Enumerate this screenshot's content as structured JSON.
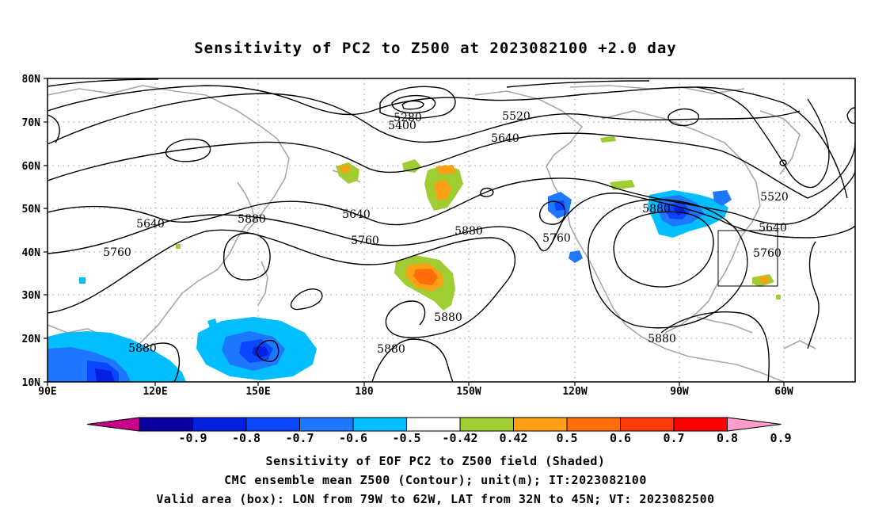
{
  "title": "Sensitivity of PC2 to Z500 at 2023082100 +2.0 day",
  "map": {
    "lat_ticks": [
      "80N",
      "70N",
      "60N",
      "50N",
      "40N",
      "30N",
      "20N",
      "10N"
    ],
    "lon_ticks": [
      "90E",
      "120E",
      "150E",
      "180",
      "150W",
      "120W",
      "90W",
      "60W"
    ],
    "contour_labels": [
      "5280",
      "5400",
      "5520",
      "5640",
      "5640",
      "5640",
      "5760",
      "5760",
      "5760",
      "5880",
      "5880",
      "5880",
      "5880",
      "5880",
      "5880",
      "5520",
      "5640",
      "5760"
    ],
    "valid_box": {
      "lon_from": "79W",
      "lon_to": "62W",
      "lat_from": "32N",
      "lat_to": "45N"
    }
  },
  "colorbar": {
    "labels": [
      "-0.9",
      "-0.8",
      "-0.7",
      "-0.6",
      "-0.5",
      "-0.42",
      "0.42",
      "0.5",
      "0.6",
      "0.7",
      "0.8",
      "0.9"
    ],
    "colors": [
      "#c8008c",
      "#0a00a0",
      "#0022e0",
      "#0a46ff",
      "#1e78ff",
      "#00beff",
      "#ffffff",
      "#a0cd32",
      "#ffa014",
      "#ff6e0a",
      "#ff3c0a",
      "#ff0000",
      "#ff9cc8"
    ]
  },
  "captions": {
    "line1": "Sensitivity of EOF PC2 to Z500 field (Shaded)",
    "line2": "CMC ensemble mean Z500 (Contour); unit(m); IT:2023082100",
    "line3": "Valid area (box): LON from 79W to 62W, LAT from 32N to 45N; VT: 2023082500"
  }
}
